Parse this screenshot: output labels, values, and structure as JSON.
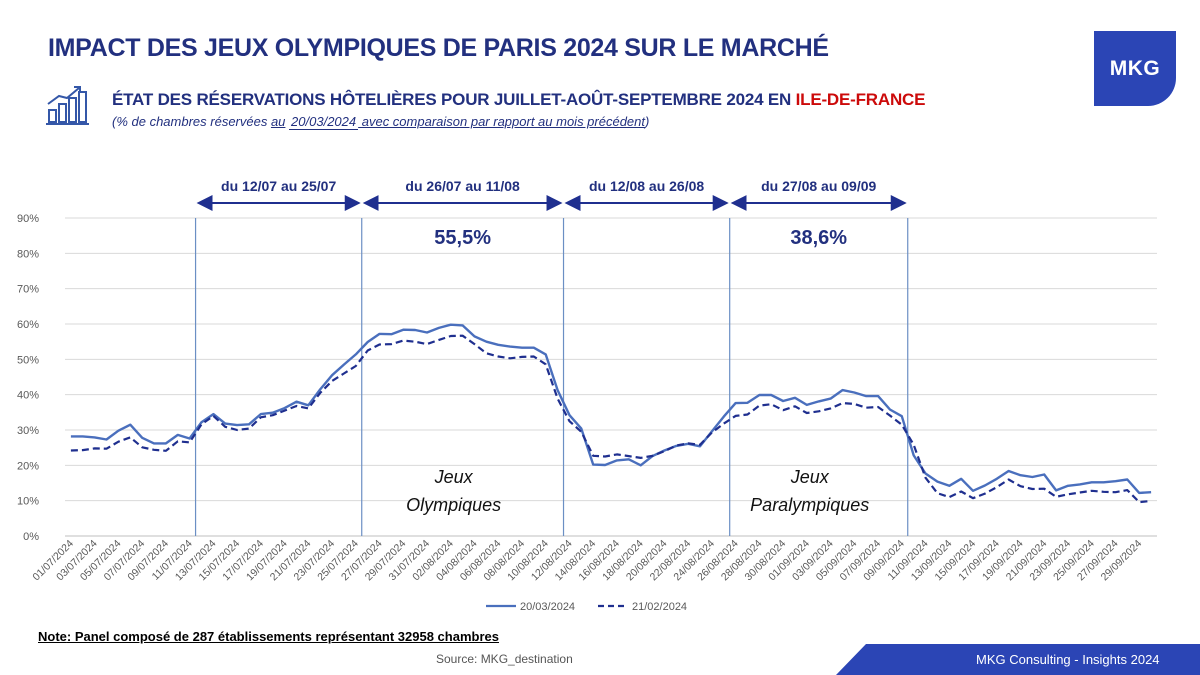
{
  "header": {
    "title": "IMPACT DES JEUX OLYMPIQUES DE PARIS 2024 SUR LE MARCHÉ",
    "logo": "MKG",
    "subtitle_main": "ÉTAT DES RÉSERVATIONS HÔTELIÈRES POUR JUILLET-AOÛT-SEPTEMBRE 2024 EN ",
    "subtitle_region": "ILE-DE-FRANCE",
    "subtitle_pre": "(% de chambres réservées ",
    "subtitle_au": "au",
    "subtitle_date": "20/03/2024",
    "subtitle_post": " avec comparaison par rapport au mois précédent",
    "subtitle_close": ")"
  },
  "colors": {
    "navy": "#22307f",
    "line": "#4a6fbd",
    "dashed": "#1f2f8f",
    "divider": "#6b8fc4",
    "grid": "#d9d9d9",
    "accent_red": "#cc0a0a",
    "logo_bg": "#2b45b5"
  },
  "chart_data": {
    "type": "line",
    "title": "",
    "ylim": [
      0,
      90
    ],
    "y_ticks": [
      "0%",
      "10%",
      "20%",
      "30%",
      "40%",
      "50%",
      "60%",
      "70%",
      "80%",
      "90%"
    ],
    "x_tick_labels": [
      "01/07/2024",
      "03/07/2024",
      "05/07/2024",
      "07/07/2024",
      "09/07/2024",
      "11/07/2024",
      "13/07/2024",
      "15/07/2024",
      "17/07/2024",
      "19/07/2024",
      "21/07/2024",
      "23/07/2024",
      "25/07/2024",
      "27/07/2024",
      "29/07/2024",
      "31/07/2024",
      "02/08/2024",
      "04/08/2024",
      "06/08/2024",
      "08/08/2024",
      "10/08/2024",
      "12/08/2024",
      "14/08/2024",
      "16/08/2024",
      "18/08/2024",
      "20/08/2024",
      "22/08/2024",
      "24/08/2024",
      "26/08/2024",
      "28/08/2024",
      "30/08/2024",
      "01/09/2024",
      "03/09/2024",
      "05/09/2024",
      "07/09/2024",
      "09/09/2024",
      "11/09/2024",
      "13/09/2024",
      "15/09/2024",
      "17/09/2024",
      "19/09/2024",
      "21/09/2024",
      "23/09/2024",
      "25/09/2024",
      "27/09/2024",
      "29/09/2024"
    ],
    "grid": true,
    "legend_position": "bottom-center",
    "series": [
      {
        "name": "20/03/2024",
        "style": "solid",
        "values": [
          28.2,
          28.2,
          27.9,
          27.3,
          29.8,
          31.5,
          27.8,
          26.2,
          26.2,
          28.6,
          27.6,
          32.2,
          34.5,
          31.8,
          31.4,
          31.6,
          34.5,
          34.9,
          36.2,
          38.0,
          37.0,
          41.5,
          45.5,
          48.5,
          51.4,
          54.9,
          57.2,
          57.1,
          58.4,
          58.3,
          57.6,
          58.9,
          59.8,
          59.6,
          56.5,
          55.0,
          54.1,
          53.6,
          53.3,
          53.3,
          51.4,
          41.3,
          34.2,
          30.4,
          20.2,
          20.1,
          21.4,
          21.7,
          20.0,
          22.6,
          24.2,
          25.5,
          26.1,
          25.4,
          29.6,
          33.8,
          37.6,
          37.7,
          39.9,
          39.9,
          38.2,
          39.1,
          37.1,
          38.1,
          38.9,
          41.3,
          40.6,
          39.6,
          39.6,
          35.8,
          33.9,
          22.8,
          17.7,
          15.4,
          14.2,
          16.2,
          12.8,
          14.3,
          16.2,
          18.4,
          17.2,
          16.7,
          17.4,
          12.9,
          14.2,
          14.6,
          15.2,
          15.2,
          15.5,
          16.0,
          12.2,
          12.4
        ]
      },
      {
        "name": "21/02/2024",
        "style": "dashed",
        "values": [
          24.2,
          24.3,
          24.8,
          24.7,
          26.7,
          27.9,
          25.1,
          24.4,
          24.1,
          26.8,
          26.5,
          31.6,
          34.0,
          30.9,
          30.0,
          30.4,
          33.6,
          34.2,
          35.5,
          36.8,
          36.1,
          40.5,
          43.9,
          46.0,
          48.1,
          52.5,
          54.2,
          54.3,
          55.3,
          55.0,
          54.3,
          55.5,
          56.6,
          56.7,
          54.3,
          51.7,
          50.8,
          50.3,
          50.7,
          50.8,
          48.6,
          38.9,
          32.5,
          29.5,
          22.7,
          22.5,
          23.1,
          22.6,
          22.1,
          22.7,
          24.0,
          25.6,
          26.2,
          25.8,
          29.3,
          31.8,
          34.0,
          34.4,
          36.9,
          37.3,
          35.6,
          36.7,
          34.8,
          35.3,
          36.1,
          37.6,
          37.4,
          36.3,
          36.5,
          34.1,
          31.5,
          25.8,
          16.5,
          12.1,
          11.0,
          12.6,
          10.7,
          12.0,
          13.8,
          16.0,
          14.1,
          13.3,
          13.4,
          11.1,
          11.8,
          12.3,
          12.8,
          12.5,
          12.4,
          13.0,
          9.6,
          9.9
        ]
      }
    ],
    "period_labels": [
      "du 12/07 au 25/07",
      "du 26/07 au 11/08",
      "du 12/08 au 26/08",
      "du 27/08 au 09/09"
    ],
    "event_values": [
      "55,5%",
      "38,6%"
    ],
    "event_names": [
      [
        "Jeux",
        "Olympiques"
      ],
      [
        "Jeux",
        "Paralympiques"
      ]
    ]
  },
  "footer": {
    "note_prefix": "Note",
    "note_text": ": Panel composé de 287 établissements représentant 32958 chambres",
    "source": "Source:  MKG_destination",
    "brand": "MKG Consulting -  Insights 2024"
  }
}
